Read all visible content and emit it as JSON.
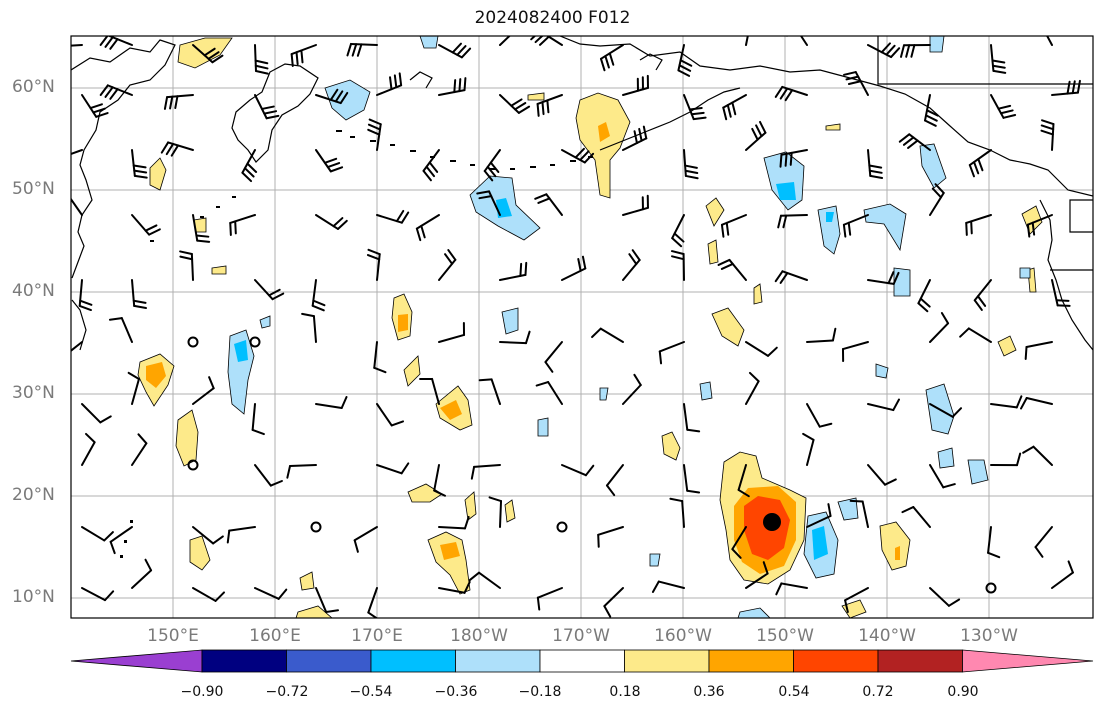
{
  "title": "2024082400 F012",
  "lat_labels": [
    "60°N",
    "50°N",
    "40°N",
    "30°N",
    "20°N",
    "10°N"
  ],
  "lon_labels": [
    "150°E",
    "160°E",
    "170°E",
    "180°W",
    "170°W",
    "160°W",
    "150°W",
    "140°W",
    "130°W"
  ],
  "colorbar": {
    "ticks": [
      "−0.90",
      "−0.72",
      "−0.54",
      "−0.36",
      "−0.18",
      "0.18",
      "0.36",
      "0.54",
      "0.72",
      "0.90"
    ],
    "colors": [
      "#9a3fd1",
      "#000080",
      "#3a5bcc",
      "#00bfff",
      "#aee0fa",
      "#ffffff",
      "#fdea8a",
      "#ffa500",
      "#ff4500",
      "#b22222",
      "#ff88b0"
    ]
  },
  "colors": {
    "grid": "#b0b0b0",
    "coast": "#000000",
    "label": "#7a7a7a"
  }
}
